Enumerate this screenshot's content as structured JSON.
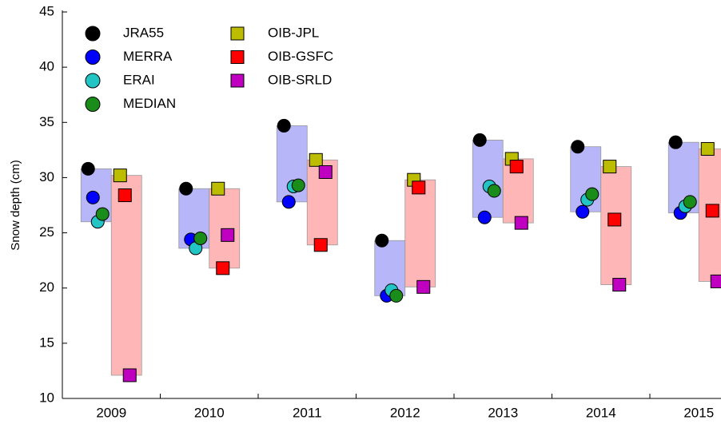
{
  "chart_data": {
    "type": "range-dot",
    "y_label": "Snow depth (cm)",
    "categories": [
      "2009",
      "2010",
      "2011",
      "2012",
      "2013",
      "2014",
      "2015"
    ],
    "ylim": [
      10,
      45
    ],
    "yticks": [
      10,
      15,
      20,
      25,
      30,
      35,
      40,
      45
    ],
    "legend": "upper left",
    "series": [
      {
        "name": "JRA55",
        "color": "#000000",
        "marker": "circle",
        "values": [
          30.8,
          29.0,
          34.7,
          24.3,
          33.4,
          32.8,
          33.2
        ]
      },
      {
        "name": "MERRA",
        "color": "#0000ff",
        "marker": "circle",
        "values": [
          28.2,
          24.4,
          27.8,
          19.3,
          26.4,
          26.9,
          26.8
        ]
      },
      {
        "name": "ERAI",
        "color": "#22c4c4",
        "marker": "circle",
        "values": [
          26.0,
          23.6,
          29.2,
          19.8,
          29.2,
          28.0,
          27.4
        ]
      },
      {
        "name": "MEDIAN",
        "color": "#1a8c1a",
        "marker": "circle",
        "values": [
          26.7,
          24.5,
          29.3,
          19.3,
          28.8,
          28.5,
          27.8
        ]
      },
      {
        "name": "OIB-JPL",
        "color": "#bcbc00",
        "marker": "square",
        "values": [
          30.2,
          29.0,
          31.6,
          29.8,
          31.7,
          31.0,
          32.6
        ]
      },
      {
        "name": "OIB-GSFC",
        "color": "#ff0000",
        "marker": "square",
        "values": [
          28.4,
          21.8,
          23.9,
          29.1,
          31.0,
          26.2,
          27.0
        ]
      },
      {
        "name": "OIB-SRLD",
        "color": "#c000c0",
        "marker": "square",
        "values": [
          12.1,
          24.8,
          30.5,
          20.1,
          25.9,
          20.3,
          20.6
        ]
      }
    ]
  }
}
